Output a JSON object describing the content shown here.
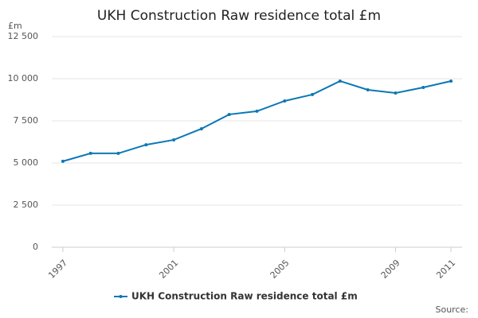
{
  "chart_data": {
    "type": "line",
    "title": "UKH Construction Raw residence total £m",
    "y_label": "£m",
    "x": [
      1997,
      1998,
      1999,
      2000,
      2001,
      2002,
      2003,
      2004,
      2005,
      2006,
      2007,
      2008,
      2009,
      2010,
      2011
    ],
    "series": [
      {
        "name": "UKH Construction Raw residence total £m",
        "color": "#0b78b4",
        "values": [
          5100,
          5570,
          5570,
          6080,
          6370,
          7030,
          7880,
          8070,
          8680,
          9060,
          9860,
          9340,
          9150,
          9480,
          9860
        ]
      }
    ],
    "xlim": [
      1996.6,
      2011.4
    ],
    "xticks": [
      1997,
      2001,
      2005,
      2009,
      2011
    ],
    "ylim": [
      0,
      12500
    ],
    "yticks": [
      0,
      {
        "value": 2500,
        "label": "2 500"
      },
      {
        "value": 5000,
        "label": "5 000"
      },
      {
        "value": 7500,
        "label": "7 500"
      },
      {
        "value": 10000,
        "label": "10 000"
      },
      {
        "value": 12500,
        "label": "12 500"
      }
    ],
    "grid": true,
    "legend": "bottom",
    "source": "Source:"
  }
}
